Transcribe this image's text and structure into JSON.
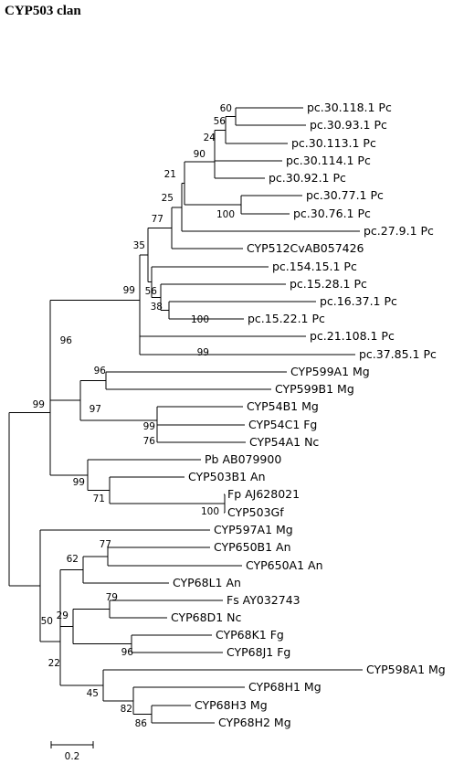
{
  "title": "CYP503 clan",
  "scale_label": "0.2",
  "leaves": [
    "pc.30.118.1 Pc",
    "pc.30.93.1 Pc",
    "pc.30.113.1 Pc",
    "pc.30.114.1 Pc",
    "pc.30.92.1 Pc",
    "pc.30.77.1 Pc",
    "pc.30.76.1 Pc",
    "pc.27.9.1 Pc",
    "CYP512CvAB057426",
    "pc.154.15.1 Pc",
    "pc.15.28.1 Pc",
    "pc.16.37.1 Pc",
    "pc.15.22.1 Pc",
    "pc.21.108.1 Pc",
    "pc.37.85.1 Pc",
    "CYP599A1 Mg",
    "CYP599B1 Mg",
    "CYP54B1 Mg",
    "CYP54C1 Fg",
    "CYP54A1 Nc",
    "Pb AB079900",
    "CYP503B1 An",
    "Fp AJ628021",
    "CYP503Gf",
    "CYP597A1 Mg",
    "CYP650B1 An",
    "CYP650A1 An",
    "CYP68L1 An",
    "Fs AY032743",
    "CYP68D1 Nc",
    "CYP68K1 Fg",
    "CYP68J1 Fg",
    "CYP598A1 Mg",
    "CYP68H1 Mg",
    "CYP68H3 Mg",
    "CYP68H2 Mg"
  ],
  "bootstrap": [
    "60",
    "56",
    "24",
    "90",
    "21",
    "100",
    "25",
    "77",
    "35",
    "56",
    "38",
    "100",
    "99",
    "99",
    "96",
    "96",
    "97",
    "99",
    "76",
    "99",
    "71",
    "100",
    "99",
    "77",
    "62",
    "79",
    "29",
    "96",
    "22",
    "50",
    "45",
    "82",
    "86"
  ]
}
